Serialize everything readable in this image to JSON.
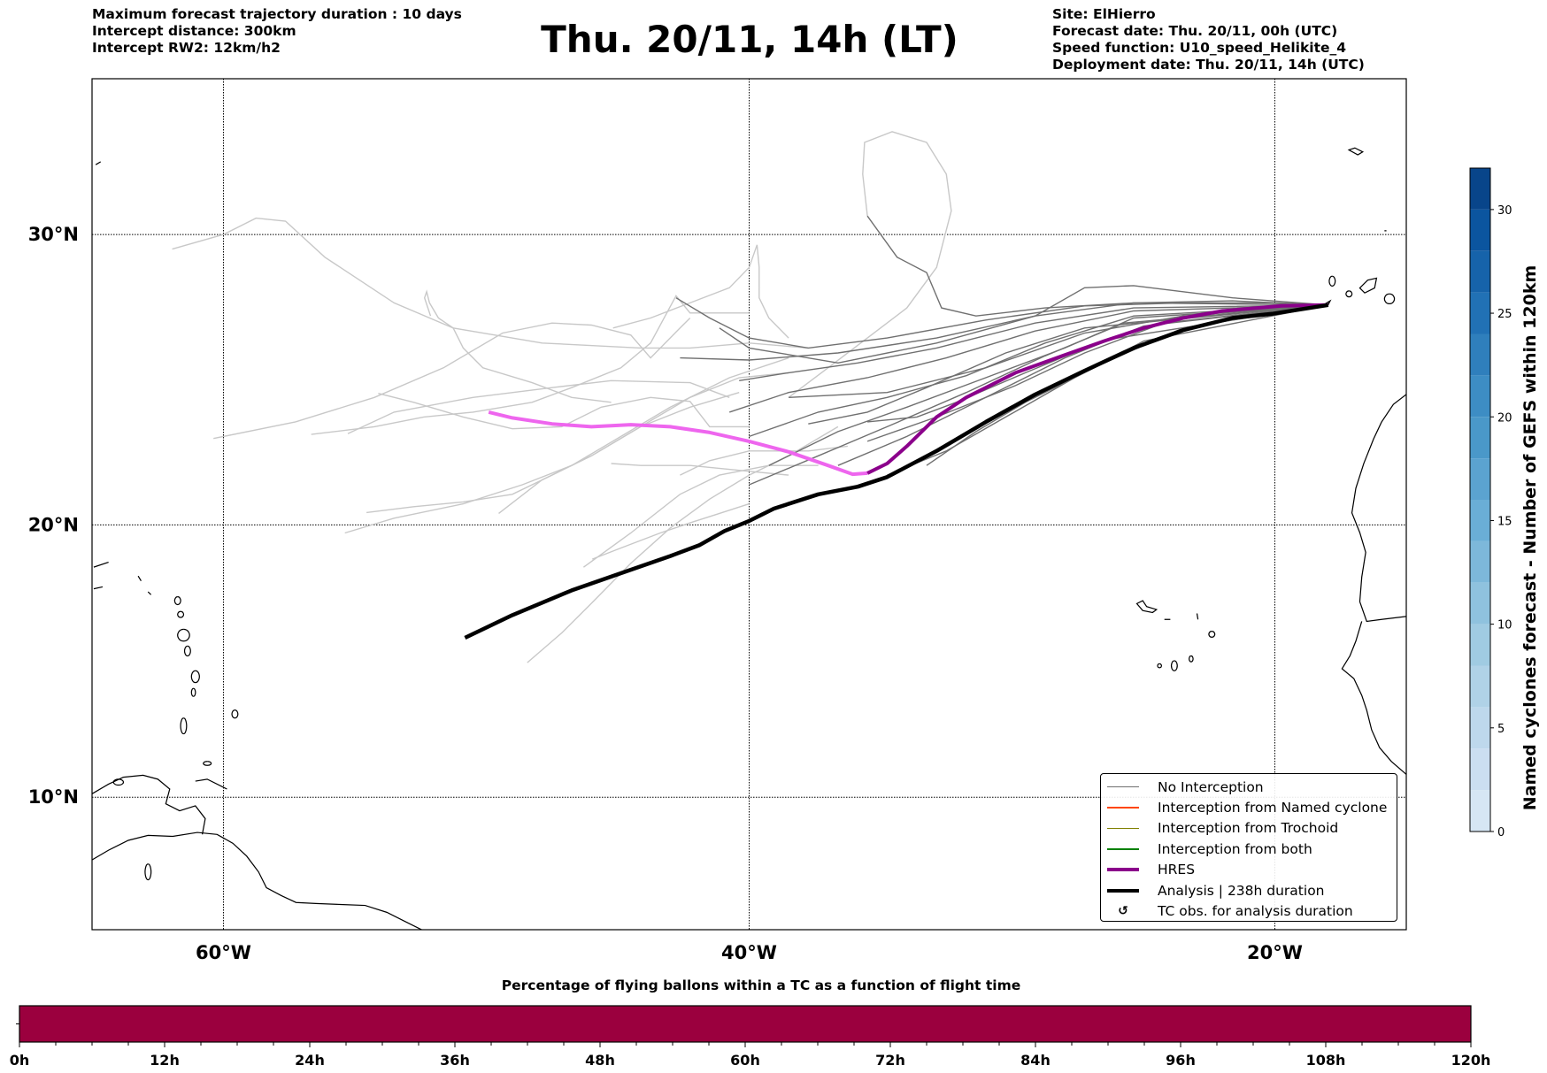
{
  "header": {
    "left": [
      "Maximum forecast trajectory duration : 10 days",
      "Intercept distance: 300km",
      "Intercept RW2: 12km/h2"
    ],
    "title": "Thu. 20/11, 14h (LT)",
    "right": [
      "Site: ElHierro",
      "Forecast date: Thu. 20/11, 00h (UTC)",
      "Speed function: U10_speed_Helikite_4",
      "Deployment date: Thu. 20/11, 14h (UTC)"
    ]
  },
  "map": {
    "extent": {
      "lon": [
        -65,
        -15
      ],
      "lat": [
        5,
        35
      ]
    },
    "lon_ticks": [
      {
        "value": -60,
        "label": "60°W"
      },
      {
        "value": -40,
        "label": "40°W"
      },
      {
        "value": -20,
        "label": "20°W"
      }
    ],
    "lat_ticks": [
      {
        "value": 30,
        "label": "30°N"
      },
      {
        "value": 20,
        "label": "20°N"
      },
      {
        "value": 10,
        "label": "10°N"
      }
    ]
  },
  "map_data": {
    "site": [
      -17.97,
      27.65
    ],
    "analysis": [
      [
        -50.81,
        15.91
      ],
      [
        -49.01,
        16.74
      ],
      [
        -46.75,
        17.64
      ],
      [
        -44.88,
        18.26
      ],
      [
        -43.0,
        18.88
      ],
      [
        -41.88,
        19.28
      ],
      [
        -40.94,
        19.78
      ],
      [
        -40.0,
        20.14
      ],
      [
        -39.06,
        20.58
      ],
      [
        -37.37,
        21.09
      ],
      [
        -35.87,
        21.36
      ],
      [
        -34.75,
        21.7
      ],
      [
        -32.87,
        22.62
      ],
      [
        -30.99,
        23.64
      ],
      [
        -29.12,
        24.59
      ],
      [
        -27.24,
        25.41
      ],
      [
        -25.37,
        26.19
      ],
      [
        -23.49,
        26.8
      ],
      [
        -21.61,
        27.21
      ],
      [
        -20.11,
        27.35
      ],
      [
        -17.97,
        27.65
      ]
    ],
    "hres_late": [
      [
        -49.91,
        23.98
      ],
      [
        -49.01,
        23.78
      ],
      [
        -47.5,
        23.57
      ],
      [
        -46.0,
        23.47
      ],
      [
        -44.5,
        23.54
      ],
      [
        -43.0,
        23.47
      ],
      [
        -41.5,
        23.27
      ],
      [
        -40.0,
        22.96
      ],
      [
        -38.5,
        22.59
      ],
      [
        -37.0,
        22.11
      ],
      [
        -36.06,
        21.8
      ],
      [
        -35.5,
        21.84
      ]
    ],
    "hres": [
      [
        -35.5,
        21.84
      ],
      [
        -34.75,
        22.18
      ],
      [
        -34.0,
        22.79
      ],
      [
        -32.87,
        23.81
      ],
      [
        -31.74,
        24.49
      ],
      [
        -29.87,
        25.34
      ],
      [
        -27.99,
        25.95
      ],
      [
        -26.49,
        26.43
      ],
      [
        -24.99,
        26.87
      ],
      [
        -23.49,
        27.21
      ],
      [
        -21.99,
        27.45
      ],
      [
        -19.74,
        27.62
      ],
      [
        -17.97,
        27.65
      ]
    ],
    "members_early": [
      [
        [
          -42.78,
          27.89
        ],
        [
          -41.5,
          27.21
        ],
        [
          -40,
          26.53
        ],
        [
          -37.75,
          26.19
        ],
        [
          -34.75,
          26.53
        ],
        [
          -31,
          27.14
        ],
        [
          -27.24,
          27.62
        ],
        [
          -23.49,
          27.72
        ],
        [
          -20.11,
          27.72
        ],
        [
          -17.97,
          27.65
        ]
      ],
      [
        [
          -35.5,
          30.61
        ],
        [
          -34.37,
          29.25
        ],
        [
          -33.25,
          28.74
        ],
        [
          -32.68,
          27.55
        ],
        [
          -31.37,
          27.28
        ],
        [
          -28.74,
          27.55
        ],
        [
          -25.37,
          27.72
        ],
        [
          -21.61,
          27.79
        ],
        [
          -17.97,
          27.65
        ]
      ],
      [
        [
          -41.13,
          26.87
        ],
        [
          -40,
          26.19
        ],
        [
          -36.62,
          25.68
        ],
        [
          -32.87,
          26.36
        ],
        [
          -29.12,
          27.28
        ],
        [
          -27.24,
          28.23
        ],
        [
          -25.37,
          28.3
        ],
        [
          -21.61,
          27.89
        ],
        [
          -17.97,
          27.65
        ]
      ],
      [
        [
          -42.63,
          25.85
        ],
        [
          -40,
          25.78
        ],
        [
          -36.62,
          26.02
        ],
        [
          -32.87,
          26.53
        ],
        [
          -29.12,
          27.28
        ],
        [
          -25.37,
          27.72
        ],
        [
          -17.97,
          27.65
        ]
      ],
      [
        [
          -40.38,
          25.07
        ],
        [
          -38.5,
          25.34
        ],
        [
          -35.87,
          25.68
        ],
        [
          -32.87,
          26.19
        ],
        [
          -29.12,
          27.04
        ],
        [
          -25.37,
          27.55
        ],
        [
          -17.97,
          27.65
        ]
      ],
      [
        [
          -40.75,
          23.98
        ],
        [
          -38.5,
          24.66
        ],
        [
          -35.5,
          25.17
        ],
        [
          -32.5,
          25.85
        ],
        [
          -29.12,
          26.77
        ],
        [
          -25.37,
          27.45
        ],
        [
          -17.97,
          27.65
        ]
      ],
      [
        [
          -40,
          23.13
        ],
        [
          -37.37,
          23.98
        ],
        [
          -34.75,
          24.49
        ],
        [
          -31.74,
          25.24
        ],
        [
          -28.74,
          26.36
        ],
        [
          -25.37,
          27.28
        ],
        [
          -17.97,
          27.65
        ]
      ],
      [
        [
          -39.25,
          22.11
        ],
        [
          -36.62,
          23.3
        ],
        [
          -34,
          24.15
        ],
        [
          -31,
          25.17
        ],
        [
          -27.99,
          26.19
        ],
        [
          -25.37,
          27.21
        ],
        [
          -17.97,
          27.65
        ]
      ],
      [
        [
          -40,
          21.43
        ],
        [
          -37.37,
          22.45
        ],
        [
          -34.75,
          23.47
        ],
        [
          -31.74,
          24.66
        ],
        [
          -28.74,
          25.92
        ],
        [
          -25.74,
          27.04
        ],
        [
          -17.97,
          27.65
        ]
      ],
      [
        [
          -36.62,
          22.11
        ],
        [
          -34,
          23.13
        ],
        [
          -31,
          24.49
        ],
        [
          -27.99,
          25.85
        ],
        [
          -24.99,
          26.94
        ],
        [
          -17.97,
          27.65
        ]
      ],
      [
        [
          -35.5,
          22.96
        ],
        [
          -32.87,
          23.81
        ],
        [
          -29.87,
          24.9
        ],
        [
          -27.24,
          26.02
        ],
        [
          -24.24,
          27.04
        ],
        [
          -17.97,
          27.65
        ]
      ],
      [
        [
          -35.5,
          23.64
        ],
        [
          -33.62,
          23.81
        ],
        [
          -32.12,
          24.32
        ],
        [
          -29.49,
          25.34
        ],
        [
          -26.49,
          26.46
        ],
        [
          -17.97,
          27.65
        ]
      ],
      [
        [
          -34.75,
          21.77
        ],
        [
          -32.5,
          22.62
        ],
        [
          -30.24,
          23.81
        ],
        [
          -27.62,
          25.17
        ],
        [
          -24.99,
          26.43
        ],
        [
          -17.97,
          27.65
        ]
      ],
      [
        [
          -33.25,
          22.11
        ],
        [
          -31.37,
          23.3
        ],
        [
          -29.49,
          24.32
        ],
        [
          -26.49,
          25.68
        ],
        [
          -23.49,
          26.87
        ],
        [
          -17.97,
          27.65
        ]
      ],
      [
        [
          -38.5,
          24.49
        ],
        [
          -34.75,
          24.66
        ],
        [
          -31,
          25.51
        ],
        [
          -27.24,
          26.7
        ],
        [
          -23.49,
          27.28
        ],
        [
          -17.97,
          27.65
        ]
      ],
      [
        [
          -37.75,
          23.57
        ],
        [
          -35.5,
          23.98
        ],
        [
          -33.25,
          24.83
        ],
        [
          -30.24,
          26.02
        ],
        [
          -27.24,
          26.87
        ],
        [
          -17.97,
          27.65
        ]
      ]
    ],
    "members_late": [
      [
        [
          -61.95,
          29.52
        ],
        [
          -60,
          30
        ],
        [
          -58.76,
          30.54
        ],
        [
          -57.64,
          30.44
        ],
        [
          -56.14,
          29.25
        ],
        [
          -53.51,
          27.72
        ],
        [
          -51.26,
          26.87
        ],
        [
          -47.88,
          26.36
        ],
        [
          -44.13,
          26.19
        ],
        [
          -42.25,
          26.19
        ],
        [
          -40,
          26.36
        ],
        [
          -37.75,
          26.19
        ]
      ],
      [
        [
          -60.38,
          23.06
        ],
        [
          -57.26,
          23.64
        ],
        [
          -54.26,
          24.49
        ],
        [
          -51.63,
          25.51
        ],
        [
          -49.38,
          26.7
        ],
        [
          -47.5,
          27.04
        ],
        [
          -46,
          26.97
        ],
        [
          -44.5,
          26.63
        ],
        [
          -43.75,
          25.85
        ],
        [
          -42.63,
          26.87
        ],
        [
          -42.25,
          27.21
        ]
      ],
      [
        [
          -56.66,
          23.2
        ],
        [
          -54.26,
          23.47
        ],
        [
          -52.38,
          23.81
        ],
        [
          -50.51,
          23.98
        ],
        [
          -48.26,
          24.32
        ],
        [
          -46.75,
          24.83
        ],
        [
          -44.88,
          25.51
        ],
        [
          -43.75,
          26.36
        ],
        [
          -42.78,
          27.96
        ],
        [
          -42.25,
          27.38
        ],
        [
          -40,
          27.38
        ]
      ],
      [
        [
          -55.27,
          23.23
        ],
        [
          -53.51,
          23.98
        ],
        [
          -50.51,
          24.49
        ],
        [
          -47.5,
          24.83
        ],
        [
          -45.25,
          25.07
        ],
        [
          -42.25,
          25.0
        ],
        [
          -40.75,
          24.49
        ]
      ],
      [
        [
          -54.11,
          24.63
        ],
        [
          -52.76,
          24.32
        ],
        [
          -50.88,
          23.81
        ],
        [
          -49.01,
          23.4
        ],
        [
          -47.13,
          23.47
        ],
        [
          -45.63,
          24.15
        ],
        [
          -43.75,
          24.49
        ],
        [
          -42.25,
          24.35
        ],
        [
          -41.5,
          23.47
        ],
        [
          -40,
          23.47
        ]
      ],
      [
        [
          -54.56,
          20.44
        ],
        [
          -52.76,
          20.65
        ],
        [
          -50.88,
          20.82
        ],
        [
          -49.01,
          21.09
        ],
        [
          -47.5,
          21.77
        ],
        [
          -46,
          22.45
        ],
        [
          -44.13,
          23.47
        ],
        [
          -42.25,
          24.49
        ],
        [
          -40.38,
          25.17
        ],
        [
          -38.5,
          25.34
        ]
      ],
      [
        [
          -55.38,
          19.71
        ],
        [
          -53.51,
          20.24
        ],
        [
          -50.88,
          20.75
        ],
        [
          -48.63,
          21.43
        ],
        [
          -46.75,
          22.11
        ],
        [
          -44.88,
          23.13
        ],
        [
          -43,
          24.15
        ],
        [
          -40.75,
          25.17
        ],
        [
          -38.5,
          25.85
        ]
      ],
      [
        [
          -49.53,
          20.41
        ],
        [
          -47.88,
          21.6
        ],
        [
          -46,
          22.45
        ],
        [
          -44.13,
          23.47
        ],
        [
          -42.25,
          24.15
        ],
        [
          -40.38,
          24.66
        ]
      ],
      [
        [
          -52.12,
          27.28
        ],
        [
          -52.35,
          27.89
        ],
        [
          -52.27,
          28.1
        ],
        [
          -52.16,
          27.72
        ],
        [
          -51.82,
          27.21
        ],
        [
          -51.26,
          26.87
        ],
        [
          -50.88,
          26.19
        ],
        [
          -50.13,
          25.51
        ],
        [
          -48.26,
          25.0
        ],
        [
          -46.75,
          24.49
        ],
        [
          -45.25,
          24.32
        ]
      ],
      [
        [
          -48.44,
          15.0
        ],
        [
          -47.13,
          16.09
        ],
        [
          -46,
          17.17
        ],
        [
          -44.5,
          18.62
        ],
        [
          -43,
          19.89
        ],
        [
          -41.5,
          20.92
        ],
        [
          -40,
          21.77
        ],
        [
          -38.5,
          22.45
        ],
        [
          -36.62,
          23.47
        ]
      ],
      [
        [
          -45.97,
          18.77
        ],
        [
          -44.88,
          19.17
        ],
        [
          -43.38,
          19.71
        ],
        [
          -42.25,
          20.07
        ],
        [
          -41.13,
          20.41
        ],
        [
          -40,
          20.75
        ]
      ],
      [
        [
          -46.3,
          18.48
        ],
        [
          -44.5,
          19.71
        ],
        [
          -42.63,
          21.09
        ],
        [
          -41.13,
          21.77
        ],
        [
          -39.25,
          22.11
        ],
        [
          -37.37,
          22.11
        ]
      ],
      [
        [
          -45.18,
          26.87
        ],
        [
          -43.75,
          27.21
        ],
        [
          -42.25,
          27.72
        ],
        [
          -40.75,
          28.23
        ],
        [
          -40,
          28.91
        ],
        [
          -39.7,
          29.66
        ],
        [
          -39.62,
          28.91
        ],
        [
          -39.62,
          27.89
        ],
        [
          -39.25,
          27.21
        ],
        [
          -38.5,
          26.53
        ]
      ],
      [
        [
          -35.5,
          30.61
        ],
        [
          -35.68,
          31.97
        ],
        [
          -35.61,
          32.99
        ],
        [
          -34.56,
          33.33
        ],
        [
          -33.25,
          32.99
        ],
        [
          -32.5,
          31.97
        ],
        [
          -32.31,
          30.78
        ],
        [
          -32.87,
          28.91
        ],
        [
          -34,
          27.55
        ],
        [
          -35.5,
          26.53
        ],
        [
          -37,
          25.51
        ],
        [
          -38.5,
          24.49
        ]
      ],
      [
        [
          -45.25,
          22.18
        ],
        [
          -44.13,
          22.11
        ],
        [
          -42.25,
          22.11
        ],
        [
          -40.38,
          21.94
        ],
        [
          -38.5,
          21.77
        ]
      ],
      [
        [
          -42.63,
          21.77
        ],
        [
          -41.5,
          22.28
        ],
        [
          -40,
          22.62
        ],
        [
          -37.75,
          22.62
        ],
        [
          -36.25,
          22.79
        ]
      ]
    ]
  },
  "colors": {
    "no_interception": "#707070",
    "late_trajectory": "#c8c8c8",
    "named_cyclone": "#ff4500",
    "trochoid": "#808000",
    "both": "#008000",
    "hres": "#8b008b",
    "hres_late": "#ee66ee",
    "analysis": "#000000",
    "bottom_bar": "#9b003e"
  },
  "legend": [
    {
      "label": "No Interception",
      "style": "thin",
      "color": "#707070"
    },
    {
      "label": "Interception from Named cyclone",
      "style": "thin",
      "color": "#ff4500"
    },
    {
      "label": "Interception from Trochoid",
      "style": "thin",
      "color": "#808000"
    },
    {
      "label": "Interception from both",
      "style": "thin",
      "color": "#008000"
    },
    {
      "label": "HRES",
      "style": "thick",
      "color": "#8b008b"
    },
    {
      "label": "Analysis | 238h duration",
      "style": "thick",
      "color": "#000000"
    },
    {
      "label": "TC obs. for analysis duration",
      "style": "marker",
      "color": "#000000",
      "symbol": "↺"
    }
  ],
  "colorbar": {
    "label": "Named cyclones forecast - Number of GEFS within 120km",
    "range": [
      0,
      32
    ],
    "ticks": [
      "0",
      "5",
      "10",
      "15",
      "20",
      "25",
      "30"
    ],
    "levels": [
      "#d6e6f4",
      "#cbdef1",
      "#bed8ec",
      "#b0d2e7",
      "#a0cbe2",
      "#8fc2de",
      "#7db8da",
      "#6aaed6",
      "#5ba3d0",
      "#4a98c9",
      "#3d8dc4",
      "#2f7fbc",
      "#2171b5",
      "#1663aa",
      "#0b559f",
      "#08458a"
    ]
  },
  "bottom": {
    "title": "Percentage of flying ballons within a TC as a function of flight time",
    "range_hours": [
      0,
      120
    ],
    "tick_labels": [
      "0h",
      "12h",
      "24h",
      "36h",
      "48h",
      "60h",
      "72h",
      "84h",
      "96h",
      "108h",
      "120h"
    ]
  }
}
